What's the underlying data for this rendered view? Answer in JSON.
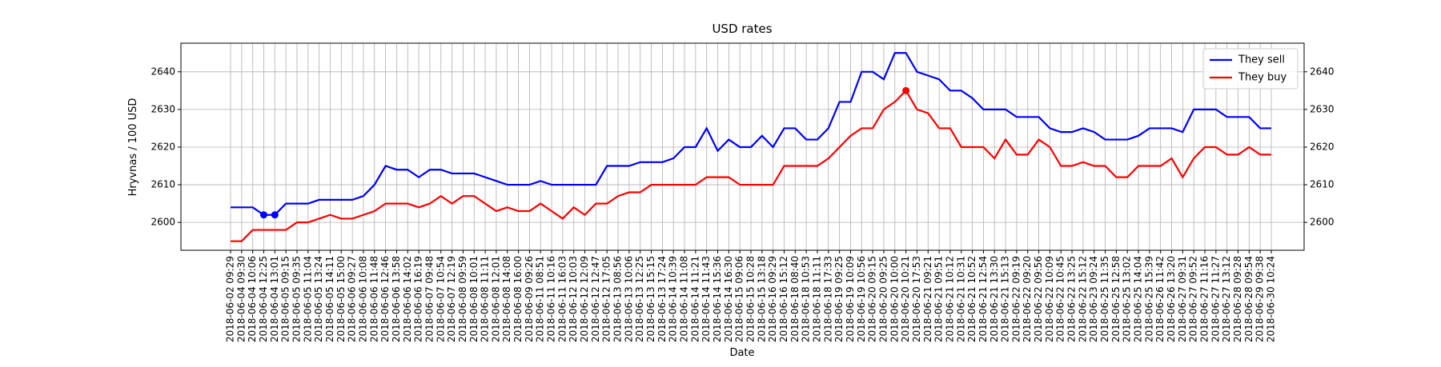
{
  "chart_data": {
    "type": "line",
    "title": "USD rates",
    "xlabel": "Date",
    "ylabel": "Hryvnas / 100 USD",
    "categories": [
      "2018-06-02 09:29",
      "2018-06-04 09:30",
      "2018-06-04 10:06",
      "2018-06-04 12:25",
      "2018-06-04 13:01",
      "2018-06-05 09:15",
      "2018-06-05 09:35",
      "2018-06-05 11:04",
      "2018-06-05 13:24",
      "2018-06-05 14:11",
      "2018-06-05 15:00",
      "2018-06-06 09:27",
      "2018-06-06 10:08",
      "2018-06-06 11:48",
      "2018-06-06 12:46",
      "2018-06-06 13:58",
      "2018-06-06 14:02",
      "2018-06-06 16:19",
      "2018-06-07 09:48",
      "2018-06-07 10:54",
      "2018-06-07 12:19",
      "2018-06-08 09:59",
      "2018-06-08 10:01",
      "2018-06-08 11:11",
      "2018-06-08 12:01",
      "2018-06-08 14:08",
      "2018-06-08 16:00",
      "2018-06-09 09:26",
      "2018-06-11 08:51",
      "2018-06-11 10:16",
      "2018-06-11 16:03",
      "2018-06-12 10:03",
      "2018-06-12 12:09",
      "2018-06-12 12:47",
      "2018-06-12 17:05",
      "2018-06-13 08:56",
      "2018-06-13 10:06",
      "2018-06-13 12:25",
      "2018-06-13 15:15",
      "2018-06-13 17:24",
      "2018-06-14 10:39",
      "2018-06-14 11:08",
      "2018-06-14 11:21",
      "2018-06-14 11:43",
      "2018-06-14 15:36",
      "2018-06-14 16:30",
      "2018-06-15 09:06",
      "2018-06-15 10:28",
      "2018-06-15 13:18",
      "2018-06-16 09:29",
      "2018-06-16 15:12",
      "2018-06-18 08:40",
      "2018-06-18 10:53",
      "2018-06-18 11:11",
      "2018-06-18 17:33",
      "2018-06-19 09:25",
      "2018-06-19 10:09",
      "2018-06-19 10:56",
      "2018-06-20 09:15",
      "2018-06-20 09:25",
      "2018-06-20 10:00",
      "2018-06-20 10:21",
      "2018-06-20 17:53",
      "2018-06-21 09:21",
      "2018-06-21 09:51",
      "2018-06-21 10:12",
      "2018-06-21 10:31",
      "2018-06-21 10:52",
      "2018-06-21 12:54",
      "2018-06-21 13:30",
      "2018-06-21 15:13",
      "2018-06-22 09:19",
      "2018-06-22 09:20",
      "2018-06-22 09:56",
      "2018-06-22 10:09",
      "2018-06-22 10:45",
      "2018-06-22 13:25",
      "2018-06-22 15:12",
      "2018-06-23 09:24",
      "2018-06-25 11:35",
      "2018-06-25 12:58",
      "2018-06-25 13:02",
      "2018-06-25 14:04",
      "2018-06-25 15:39",
      "2018-06-26 11:42",
      "2018-06-26 13:20",
      "2018-06-27 09:31",
      "2018-06-27 09:52",
      "2018-06-27 11:16",
      "2018-06-27 11:27",
      "2018-06-27 13:12",
      "2018-06-28 09:28",
      "2018-06-28 09:54",
      "2018-06-29 09:38",
      "2018-06-30 10:24"
    ],
    "series": [
      {
        "name": "They sell",
        "color": "#0000ff",
        "highlight": [
          3,
          4
        ],
        "values": [
          2604,
          2604,
          2604,
          2602,
          2602,
          2605,
          2605,
          2605,
          2606,
          2606,
          2606,
          2606,
          2607,
          2610,
          2615,
          2614,
          2614,
          2612,
          2614,
          2614,
          2613,
          2613,
          2613,
          2612,
          2611,
          2610,
          2610,
          2610,
          2611,
          2610,
          2610,
          2610,
          2610,
          2610,
          2615,
          2615,
          2615,
          2616,
          2616,
          2616,
          2617,
          2620,
          2620,
          2625,
          2619,
          2622,
          2620,
          2620,
          2623,
          2620,
          2625,
          2625,
          2622,
          2622,
          2625,
          2632,
          2632,
          2640,
          2640,
          2638,
          2645,
          2645,
          2640,
          2639,
          2638,
          2635,
          2635,
          2633,
          2630,
          2630,
          2630,
          2628,
          2628,
          2628,
          2625,
          2624,
          2624,
          2625,
          2624,
          2622,
          2622,
          2622,
          2623,
          2625,
          2625,
          2625,
          2624,
          2630,
          2630,
          2630,
          2628,
          2628,
          2628,
          2625,
          2625
        ]
      },
      {
        "name": "They buy",
        "color": "#ff0000",
        "highlight": [
          61
        ],
        "values": [
          2595,
          2595,
          2598,
          2598,
          2598,
          2598,
          2600,
          2600,
          2601,
          2602,
          2601,
          2601,
          2602,
          2603,
          2605,
          2605,
          2605,
          2604,
          2605,
          2607,
          2605,
          2607,
          2607,
          2605,
          2603,
          2604,
          2603,
          2603,
          2605,
          2603,
          2601,
          2604,
          2602,
          2605,
          2605,
          2607,
          2608,
          2608,
          2610,
          2610,
          2610,
          2610,
          2610,
          2612,
          2612,
          2612,
          2610,
          2610,
          2610,
          2610,
          2615,
          2615,
          2615,
          2615,
          2617,
          2620,
          2623,
          2625,
          2625,
          2630,
          2632,
          2635,
          2630,
          2629,
          2625,
          2625,
          2620,
          2620,
          2620,
          2617,
          2622,
          2618,
          2618,
          2622,
          2620,
          2615,
          2615,
          2616,
          2615,
          2615,
          2612,
          2612,
          2615,
          2615,
          2615,
          2617,
          2612,
          2617,
          2620,
          2620,
          2618,
          2618,
          2620,
          2618,
          2618
        ]
      }
    ],
    "ylim": [
      2592.6,
      2647.6
    ],
    "yticks": [
      2600,
      2610,
      2620,
      2630,
      2640
    ],
    "y2lim": [
      2592.6,
      2647.6
    ],
    "y2ticks": [
      2600,
      2610,
      2620,
      2630,
      2640
    ],
    "grid": true,
    "legend": "upper right"
  }
}
